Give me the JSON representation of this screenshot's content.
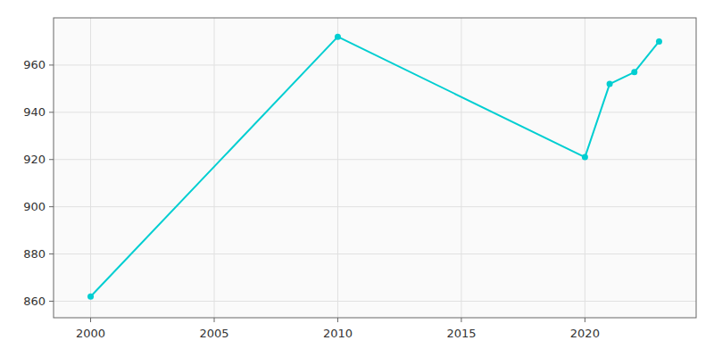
{
  "chart_data": {
    "type": "line",
    "x": [
      2000,
      2010,
      2020,
      2021,
      2022,
      2023
    ],
    "values": [
      862,
      972,
      921,
      952,
      957,
      970
    ],
    "color": "#00CED1",
    "marker": "circle",
    "xlim": [
      1998.5,
      2024.5
    ],
    "ylim": [
      853,
      980
    ],
    "xticks": [
      2000,
      2005,
      2010,
      2015,
      2020
    ],
    "yticks": [
      860,
      880,
      900,
      920,
      940,
      960
    ],
    "grid": true
  }
}
